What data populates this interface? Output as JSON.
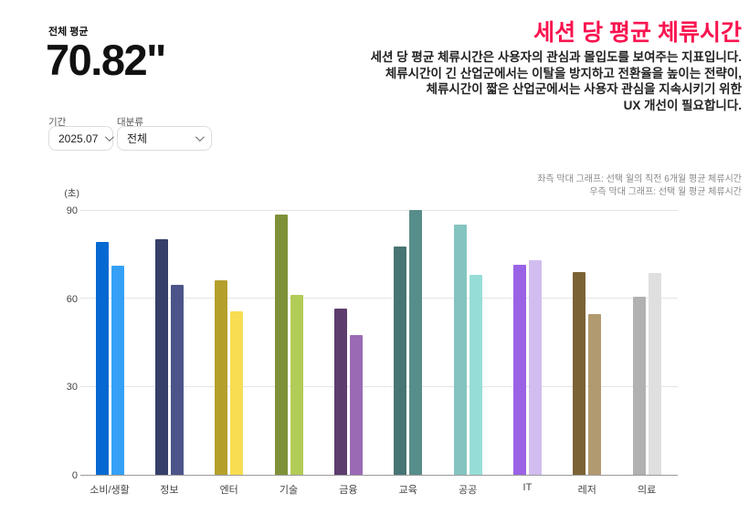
{
  "header": {
    "metric_label": "전체 평균",
    "metric_value": "70.82\"",
    "title": "세션 당 평균 체류시간",
    "title_color": "#F9134F",
    "description_lines": [
      "세션 당 평균 체류시간은 사용자의 관심과 몰입도를 보여주는 지표입니다.",
      "체류시간이 긴 산업군에서는 이탈을 방지하고 전환율을 높이는 전략이,",
      "체류시간이 짧은 산업군에서는 사용자 관심을 지속시키기 위한",
      "UX 개선이 필요합니다."
    ]
  },
  "filters": {
    "period_label": "기간",
    "period_value": "2025.07",
    "category_label": "대분류",
    "category_value": "전체"
  },
  "legend_notes": [
    "좌측 막대 그래프: 선택 월의 직전 6개월 평균 체류시간",
    "우측 막대 그래프: 선택 월 평균 체류시간"
  ],
  "chart_data": {
    "type": "bar",
    "title": "세션 당 평균 체류시간",
    "unit_label": "(초)",
    "xlabel": "",
    "ylabel": "초",
    "ylim": [
      0,
      90
    ],
    "yticks": [
      0,
      30,
      60,
      90
    ],
    "grid": true,
    "legend_position": "top-right-notes",
    "categories": [
      "소비/생활",
      "정보",
      "엔터",
      "기술",
      "금융",
      "교육",
      "공공",
      "IT",
      "레저",
      "의료"
    ],
    "series": [
      {
        "name": "선택 월의 직전 6개월 평균 체류시간",
        "values": [
          79,
          80,
          66,
          88.5,
          56.5,
          77.5,
          85,
          71.5,
          69,
          60.5
        ],
        "colors": [
          "#0569d2",
          "#363f68",
          "#b5a02c",
          "#7e9138",
          "#5d3d6e",
          "#477574",
          "#84c4c0",
          "#9a63e6",
          "#7c6335",
          "#b1b1b1"
        ]
      },
      {
        "name": "선택 월 평균 체류시간",
        "values": [
          71,
          64.5,
          55.5,
          61,
          47.5,
          90,
          68,
          73,
          54.5,
          68.5
        ],
        "colors": [
          "#35a0f5",
          "#4c5489",
          "#f8dd52",
          "#b2cc58",
          "#9a6ab5",
          "#578d8a",
          "#96ddd8",
          "#d2bdf0",
          "#b29a70",
          "#dfdfdf"
        ]
      }
    ]
  }
}
